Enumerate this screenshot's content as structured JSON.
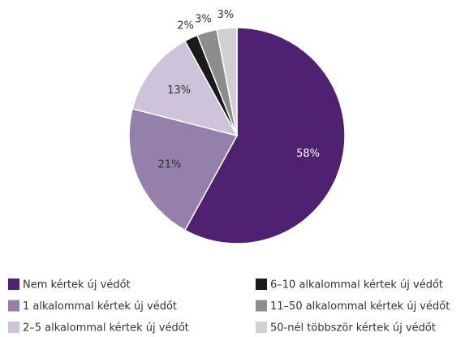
{
  "chart_data": {
    "type": "pie",
    "categories": [
      "Nem kértek új védőt",
      "1 alkalommal kértek új védőt",
      "2–5 alkalommal kértek új védőt",
      "6–10 alkalommal kértek új védőt",
      "11–50 alkalommal kértek új védőt",
      "50-nél többször kértek új védőt"
    ],
    "values": [
      58,
      21,
      13,
      2,
      3,
      3
    ],
    "value_labels": [
      "58%",
      "21%",
      "13%",
      "2%",
      "3%",
      "3%"
    ],
    "colors": [
      "#4f2170",
      "#9580ab",
      "#cdc3da",
      "#1a1a1a",
      "#8c8c8c",
      "#d0d0d0"
    ],
    "legend": "bottom"
  }
}
